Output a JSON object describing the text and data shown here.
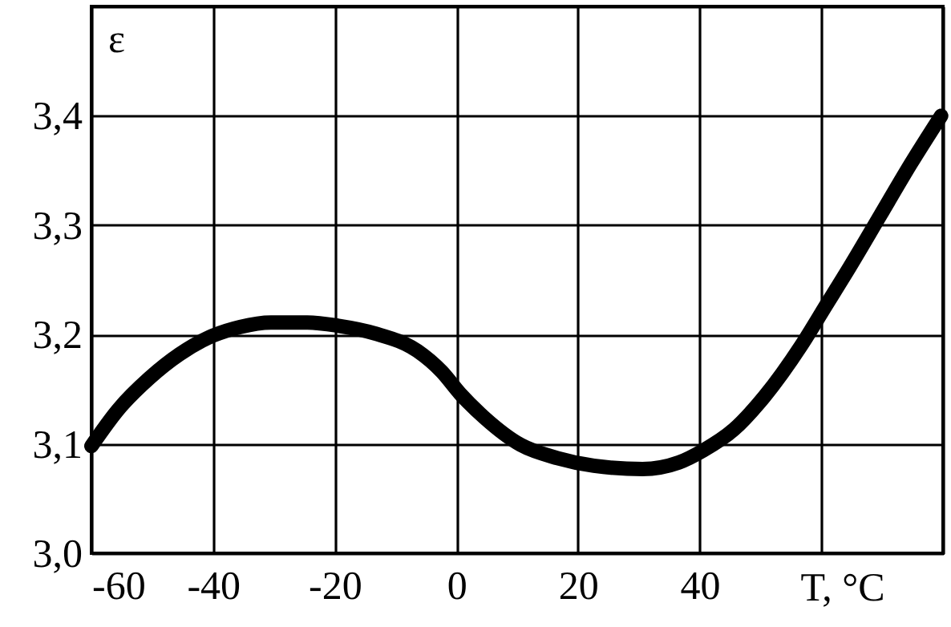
{
  "chart_data": {
    "type": "line",
    "xlabel": "T, °C",
    "ylabel": "ε",
    "series": [
      {
        "color": "#000000",
        "x": [
          -60,
          -55.5,
          -50.5,
          -45.5,
          -40,
          -35.5,
          -30.5,
          -24.5,
          -19.4,
          -13.4,
          -6.4,
          -2.4,
          0.6,
          4.6,
          10.6,
          16.6,
          22.6,
          30.6,
          36.6,
          40.6,
          45.6,
          50.6,
          56.7,
          60.7,
          64.7,
          69.7,
          74.7,
          79.7
        ],
        "values": [
          3.098,
          3.132,
          3.16,
          3.182,
          3.199,
          3.207,
          3.211,
          3.211,
          3.208,
          3.201,
          3.185,
          3.166,
          3.146,
          3.124,
          3.099,
          3.087,
          3.08,
          3.077,
          3.083,
          3.094,
          3.113,
          3.143,
          3.19,
          3.226,
          3.262,
          3.309,
          3.356,
          3.4
        ]
      }
    ],
    "xlim": [
      -60,
      80
    ],
    "xticks": [
      -60,
      -40,
      -20,
      0,
      20,
      40,
      {
        "value": 60,
        "label": null
      },
      {
        "value": 80,
        "label": null
      }
    ],
    "ylim": [
      3.0,
      3.5
    ],
    "yticks": [
      {
        "value": 3.0,
        "label": "3,0"
      },
      {
        "value": 3.1,
        "label": "3,1"
      },
      {
        "value": 3.2,
        "label": "3,2"
      },
      {
        "value": 3.3,
        "label": "3,3"
      },
      {
        "value": 3.4,
        "label": "3,4"
      },
      {
        "value": 3.5,
        "label": null
      }
    ],
    "grid": true,
    "line_style": "solid"
  }
}
